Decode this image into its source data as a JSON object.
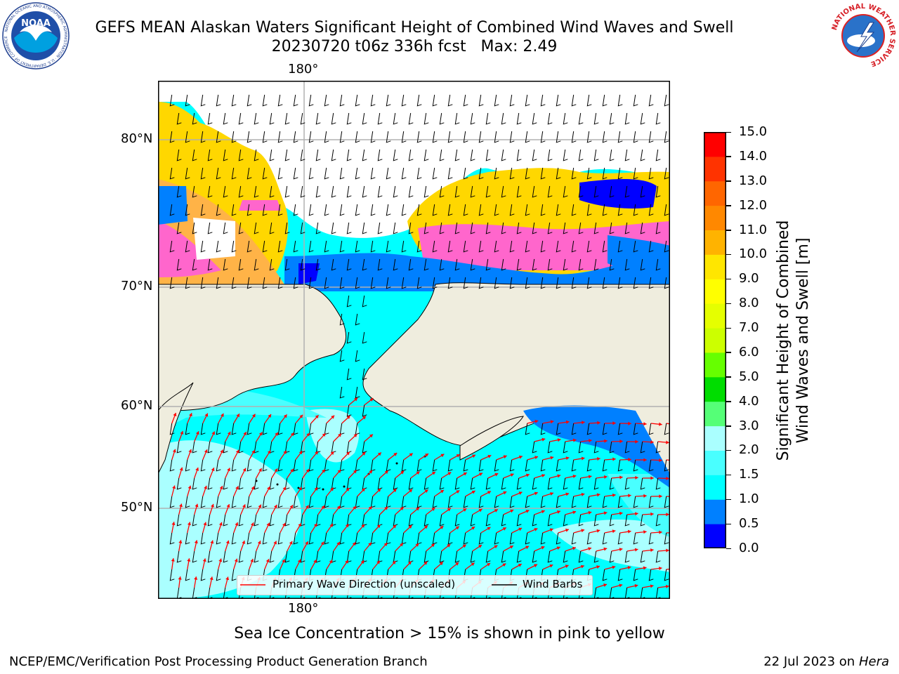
{
  "header": {
    "title_line1": "GEFS MEAN Alaskan Waters Significant Height of Combined Wind Waves and Swell",
    "title_line2": "20230720 t06z 336h fcst   Max: 2.49"
  },
  "logos": {
    "left": {
      "name": "noaa-logo",
      "text": "NOAA",
      "ring_text": "NATIONAL OCEANIC AND ATMOSPHERIC ADMINISTRATION · U.S. DEPARTMENT OF COMMERCE"
    },
    "right": {
      "name": "nws-logo",
      "ring_text": "NATIONAL WEATHER SERVICE"
    }
  },
  "map": {
    "top_lon_label": "180°",
    "bottom_lon_label": "180°",
    "lat_labels": [
      "80°N",
      "70°N",
      "60°N",
      "50°N"
    ],
    "colors": {
      "land": "#efedde",
      "ocean_low": "#00ffff",
      "ocean_med": "#49ffff",
      "ocean_high": "#aaffff",
      "ice_pink": "#ff66cc",
      "ice_yellow": "#ffd700",
      "ice_orange": "#ffb347",
      "blue": "#0000ff",
      "mid_blue": "#0080ff",
      "grid": "#b0b0b0",
      "arrow": "#ff0000",
      "barb": "#000000"
    },
    "legend": {
      "wave_label": "Primary Wave Direction (unscaled)",
      "barb_label": "Wind Barbs"
    }
  },
  "colorbar": {
    "label_line1": "Significant Height of Combined",
    "label_line2": "Wind Waves and Swell [m]",
    "ticks": [
      "15.0",
      "14.0",
      "13.0",
      "12.0",
      "11.0",
      "10.0",
      "9.0",
      "8.0",
      "7.0",
      "6.0",
      "5.0",
      "4.0",
      "3.0",
      "2.0",
      "1.5",
      "1.0",
      "0.5",
      "0.0"
    ],
    "bins": [
      {
        "lo": 0.0,
        "hi": 0.5,
        "color": "#0000ff"
      },
      {
        "lo": 0.5,
        "hi": 1.0,
        "color": "#0080ff"
      },
      {
        "lo": 1.0,
        "hi": 1.5,
        "color": "#00ffff"
      },
      {
        "lo": 1.5,
        "hi": 2.0,
        "color": "#49ffff"
      },
      {
        "lo": 2.0,
        "hi": 3.0,
        "color": "#aaffff"
      },
      {
        "lo": 3.0,
        "hi": 4.0,
        "color": "#55ff77"
      },
      {
        "lo": 4.0,
        "hi": 5.0,
        "color": "#00dd00"
      },
      {
        "lo": 5.0,
        "hi": 6.0,
        "color": "#66ff00"
      },
      {
        "lo": 6.0,
        "hi": 7.0,
        "color": "#ccff00"
      },
      {
        "lo": 7.0,
        "hi": 8.0,
        "color": "#e5ff00"
      },
      {
        "lo": 8.0,
        "hi": 9.0,
        "color": "#ffff00"
      },
      {
        "lo": 9.0,
        "hi": 10.0,
        "color": "#ffe600"
      },
      {
        "lo": 10.0,
        "hi": 11.0,
        "color": "#ffb300"
      },
      {
        "lo": 11.0,
        "hi": 12.0,
        "color": "#ff8800"
      },
      {
        "lo": 12.0,
        "hi": 13.0,
        "color": "#ff6600"
      },
      {
        "lo": 13.0,
        "hi": 14.0,
        "color": "#ff3300"
      },
      {
        "lo": 14.0,
        "hi": 15.0,
        "color": "#ff0000"
      }
    ]
  },
  "caption": "Sea Ice Concentration > 15% is shown in pink to yellow",
  "footer": {
    "left": "NCEP/EMC/Verification Post Processing Product Generation Branch",
    "right_date": "22 Jul 2023 on ",
    "right_host": "Hera"
  }
}
